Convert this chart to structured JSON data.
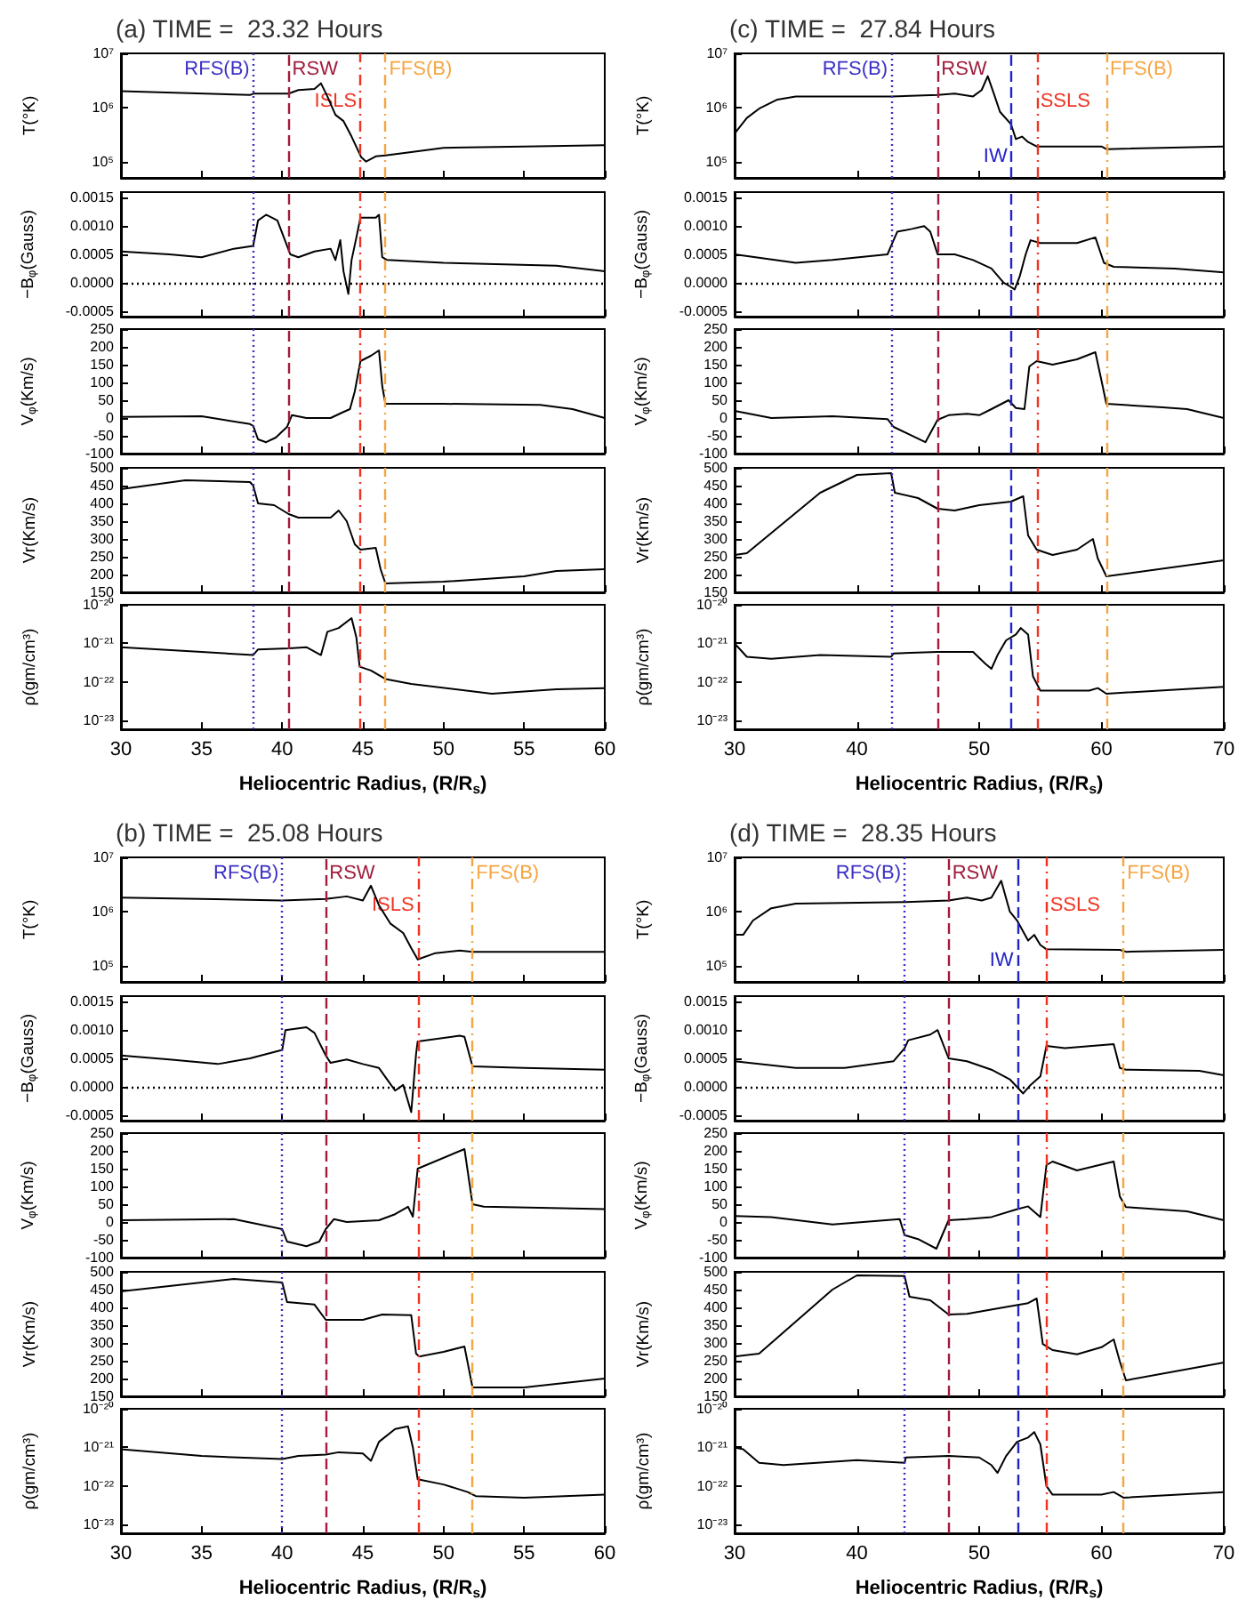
{
  "chart_data": [
    {
      "type": "line",
      "title": "(a) TIME =  23.32 Hours",
      "ylabel": "T(°K)",
      "log": true,
      "color": "#000000",
      "xlim": [
        30,
        60
      ],
      "xticks": [
        30,
        35,
        40,
        45,
        50,
        55,
        60
      ],
      "tick_labels": "y",
      "ylim": [
        50000.0,
        10000000.0
      ],
      "yticks": [
        {
          "value": 100000.0,
          "label": "10⁵"
        },
        {
          "value": 1000000.0,
          "label": "10⁶"
        },
        {
          "value": 10000000.0,
          "label": "10⁷"
        }
      ],
      "ref_lines": [
        {
          "axis": "x",
          "value": 38.2,
          "label": "RFS(B)",
          "color": "#3b2fc4",
          "line_style": "dotted"
        },
        {
          "axis": "x",
          "value": 40.4,
          "label": "RSW",
          "color": "#a01c3c",
          "line_style": "dashed"
        },
        {
          "axis": "x",
          "value": 44.85,
          "label": "ISLS",
          "color": "#ee3322",
          "line_style": "dashdot"
        },
        {
          "axis": "x",
          "value": 46.4,
          "label": "FFS(B)",
          "color": "#f5a542",
          "line_style": "dashdot"
        }
      ],
      "x": [
        30,
        38,
        38.2,
        40.4,
        41,
        42,
        42.4,
        42.8,
        43.3,
        43.8,
        44.3,
        44.9,
        45.2,
        45.8,
        46.4,
        48,
        50,
        55,
        60
      ],
      "values": [
        2000000.0,
        1700000.0,
        1800000.0,
        1800000.0,
        2100000.0,
        2200000.0,
        2800000.0,
        1600000.0,
        730000.0,
        560000.0,
        290000.0,
        120000.0,
        100000.0,
        125000.0,
        130000.0,
        150000.0,
        180000.0,
        190000.0,
        200000.0
      ]
    },
    {
      "type": "line",
      "ylabel": "−B$_{φ}$(Gauss)",
      "color": "#000000",
      "xlim": [
        30,
        60
      ],
      "xticks": [
        30,
        35,
        40,
        45,
        50,
        55,
        60
      ],
      "tick_labels": "y",
      "ylim": [
        -0.0006,
        0.0016
      ],
      "yticks": [
        -0.0005,
        {
          "value": 0,
          "label": "0.0000"
        },
        0.0005,
        {
          "value": 0.001,
          "label": "0.0010"
        },
        0.0015
      ],
      "ref_lines": [
        {
          "axis": "x",
          "value": 38.2,
          "color": "#3b2fc4",
          "line_style": "dotted"
        },
        {
          "axis": "x",
          "value": 40.4,
          "color": "#a01c3c",
          "line_style": "dashed"
        },
        {
          "axis": "x",
          "value": 44.85,
          "color": "#ee3322",
          "line_style": "dashdot"
        },
        {
          "axis": "x",
          "value": 46.4,
          "color": "#f5a542",
          "line_style": "dashdot"
        },
        {
          "axis": "y",
          "value": 0,
          "color": "#000000",
          "line_style": "dotted"
        }
      ],
      "x": [
        30,
        33,
        35,
        37,
        38.2,
        38.5,
        39,
        39.7,
        40.1,
        40.5,
        41,
        42,
        43,
        43.3,
        43.6,
        43.8,
        44.1,
        44.3,
        44.6,
        44.85,
        45.8,
        46,
        46.2,
        46.5,
        50,
        57,
        60
      ],
      "values": [
        0.00055,
        0.0005,
        0.00045,
        0.0006,
        0.00065,
        0.0011,
        0.0012,
        0.0011,
        0.0008,
        0.0005,
        0.00045,
        0.00055,
        0.0006,
        0.0004,
        0.00075,
        0.0002,
        -0.0002,
        0.0004,
        0.0008,
        0.00115,
        0.00115,
        0.0012,
        0.00045,
        0.0004,
        0.00035,
        0.0003,
        0.0002
      ]
    },
    {
      "type": "line",
      "ylabel": "V$_{φ}$(Km/s)",
      "color": "#000000",
      "xlim": [
        30,
        60
      ],
      "xticks": [
        30,
        35,
        40,
        45,
        50,
        55,
        60
      ],
      "tick_labels": "y",
      "ylim": [
        -100,
        250
      ],
      "yticks": [
        -100,
        -50,
        0,
        50,
        100,
        150,
        200,
        250
      ],
      "ref_lines": [
        {
          "axis": "x",
          "value": 38.2,
          "color": "#3b2fc4",
          "line_style": "dotted"
        },
        {
          "axis": "x",
          "value": 40.4,
          "color": "#a01c3c",
          "line_style": "dashed"
        },
        {
          "axis": "x",
          "value": 44.85,
          "color": "#ee3322",
          "line_style": "dashdot"
        },
        {
          "axis": "x",
          "value": 46.4,
          "color": "#f5a542",
          "line_style": "dashdot"
        }
      ],
      "x": [
        30,
        35,
        38,
        38.2,
        38.5,
        39,
        39.6,
        40.3,
        40.6,
        41.5,
        43,
        43.7,
        44.2,
        44.5,
        44.85,
        45.5,
        46,
        46.2,
        46.4,
        50,
        56,
        58,
        60
      ],
      "values": [
        3,
        5,
        -17,
        -22,
        -60,
        -68,
        -55,
        -25,
        8,
        0,
        0,
        15,
        25,
        75,
        160,
        175,
        190,
        90,
        40,
        40,
        37,
        25,
        0
      ]
    },
    {
      "type": "line",
      "ylabel": "Vr(Km/s)",
      "color": "#000000",
      "xlim": [
        30,
        60
      ],
      "xticks": [
        30,
        35,
        40,
        45,
        50,
        55,
        60
      ],
      "tick_labels": "y",
      "ylim": [
        150,
        500
      ],
      "yticks": [
        150,
        200,
        250,
        300,
        350,
        400,
        450,
        500
      ],
      "ref_lines": [
        {
          "axis": "x",
          "value": 38.2,
          "color": "#3b2fc4",
          "line_style": "dotted"
        },
        {
          "axis": "x",
          "value": 40.4,
          "color": "#a01c3c",
          "line_style": "dashed"
        },
        {
          "axis": "x",
          "value": 44.85,
          "color": "#ee3322",
          "line_style": "dashdot"
        },
        {
          "axis": "x",
          "value": 46.4,
          "color": "#f5a542",
          "line_style": "dashdot"
        }
      ],
      "x": [
        30,
        34,
        38,
        38.2,
        38.5,
        39.5,
        40.4,
        41,
        43,
        43.5,
        44,
        44.5,
        44.85,
        45.8,
        46.1,
        46.4,
        50,
        55,
        57,
        60
      ],
      "values": [
        440,
        465,
        460,
        450,
        400,
        395,
        370,
        360,
        360,
        380,
        350,
        285,
        270,
        275,
        215,
        175,
        180,
        195,
        210,
        215
      ]
    },
    {
      "type": "line",
      "ylabel": "ρ(gm/cm³)",
      "xlabel": "Heliocentric Radius, (R/R$_{s}$)",
      "log": true,
      "color": "#000000",
      "xlim": [
        30,
        60
      ],
      "xticks": [
        30,
        35,
        40,
        45,
        50,
        55,
        60
      ],
      "ylim": [
        6e-24,
        1e-20
      ],
      "yticks": [
        {
          "value": 1e-23,
          "label": "10⁻²³"
        },
        {
          "value": 1e-22,
          "label": "10⁻²²"
        },
        {
          "value": 1e-21,
          "label": "10⁻²¹"
        },
        {
          "value": 1e-20,
          "label": "10⁻²⁰"
        }
      ],
      "ref_lines": [
        {
          "axis": "x",
          "value": 38.2,
          "color": "#3b2fc4",
          "line_style": "dotted"
        },
        {
          "axis": "x",
          "value": 40.4,
          "color": "#a01c3c",
          "line_style": "dashed"
        },
        {
          "axis": "x",
          "value": 44.85,
          "color": "#ee3322",
          "line_style": "dashdot"
        },
        {
          "axis": "x",
          "value": 46.4,
          "color": "#f5a542",
          "line_style": "dashdot"
        }
      ],
      "x": [
        30,
        35,
        38.2,
        38.5,
        40.4,
        41.5,
        42.4,
        42.8,
        43.5,
        44.3,
        44.6,
        44.8,
        45.5,
        46.4,
        48,
        53,
        57,
        60
      ],
      "values": [
        8e-22,
        6e-22,
        5e-22,
        7e-22,
        7.5e-22,
        8e-22,
        5e-22,
        2e-21,
        2.5e-21,
        4.5e-21,
        1.4e-21,
        2.5e-22,
        2e-22,
        1.2e-22,
        9e-23,
        5e-23,
        6.5e-23,
        7e-23
      ]
    },
    {
      "type": "line",
      "title": "(c) TIME =  27.84 Hours",
      "ylabel": "T(°K)",
      "log": true,
      "color": "#000000",
      "xlim": [
        30,
        70
      ],
      "xticks": [
        30,
        40,
        50,
        60,
        70
      ],
      "tick_labels": "y",
      "ylim": [
        50000.0,
        10000000.0
      ],
      "yticks": [
        {
          "value": 100000.0,
          "label": "10⁵"
        },
        {
          "value": 1000000.0,
          "label": "10⁶"
        },
        {
          "value": 10000000.0,
          "label": "10⁷"
        }
      ],
      "ref_lines": [
        {
          "axis": "x",
          "value": 42.8,
          "label": "RFS(B)",
          "color": "#3b2fc4",
          "line_style": "dotted"
        },
        {
          "axis": "x",
          "value": 46.6,
          "label": "RSW",
          "color": "#a01c3c",
          "line_style": "dashed"
        },
        {
          "axis": "x",
          "value": 52.6,
          "label": "IW",
          "color": "#2323c8",
          "line_style": "dashed"
        },
        {
          "axis": "x",
          "value": 54.7,
          "label": "SSLS",
          "color": "#ee3322",
          "line_style": "dashdot"
        },
        {
          "axis": "x",
          "value": 60.4,
          "label": "FFS(B)",
          "color": "#f5a542",
          "line_style": "dashdot"
        }
      ],
      "x": [
        30,
        31,
        32,
        33.5,
        35,
        42.8,
        46.6,
        48,
        49.5,
        50.2,
        50.7,
        51.2,
        51.7,
        52.6,
        53,
        53.5,
        54,
        54.7,
        60,
        60.4,
        70
      ],
      "values": [
        330000.0,
        640000.0,
        950000.0,
        1400000.0,
        1600000.0,
        1600000.0,
        1700000.0,
        1800000.0,
        1600000.0,
        2100000.0,
        3800000.0,
        1800000.0,
        830000.0,
        490000.0,
        260000.0,
        290000.0,
        230000.0,
        190000.0,
        190000.0,
        170000.0,
        190000.0
      ]
    },
    {
      "type": "line",
      "ylabel": "−B$_{φ}$(Gauss)",
      "color": "#000000",
      "xlim": [
        30,
        70
      ],
      "xticks": [
        30,
        40,
        50,
        60,
        70
      ],
      "tick_labels": "y",
      "ylim": [
        -0.0006,
        0.0016
      ],
      "yticks": [
        -0.0005,
        {
          "value": 0,
          "label": "0.0000"
        },
        0.0005,
        {
          "value": 0.001,
          "label": "0.0010"
        },
        0.0015
      ],
      "ref_lines": [
        {
          "axis": "x",
          "value": 42.8,
          "color": "#3b2fc4",
          "line_style": "dotted"
        },
        {
          "axis": "x",
          "value": 46.6,
          "color": "#a01c3c",
          "line_style": "dashed"
        },
        {
          "axis": "x",
          "value": 52.6,
          "color": "#2323c8",
          "line_style": "dashed"
        },
        {
          "axis": "x",
          "value": 54.7,
          "color": "#ee3322",
          "line_style": "dashdot"
        },
        {
          "axis": "x",
          "value": 60.4,
          "color": "#f5a542",
          "line_style": "dashdot"
        },
        {
          "axis": "y",
          "value": 0,
          "color": "#000000",
          "line_style": "dotted"
        }
      ],
      "x": [
        30,
        35,
        38,
        42.5,
        42.8,
        43.3,
        44.5,
        45.5,
        46,
        46.6,
        48,
        49.5,
        51,
        52,
        52.4,
        52.9,
        53.3,
        53.8,
        54.2,
        55,
        58,
        59.5,
        60.2,
        61,
        66,
        70
      ],
      "values": [
        0.0005,
        0.00035,
        0.0004,
        0.0005,
        0.00065,
        0.0009,
        0.00095,
        0.001,
        0.0009,
        0.0005,
        0.0005,
        0.0004,
        0.00025,
        0,
        -5e-05,
        -0.00012,
        0.0001,
        0.0005,
        0.00075,
        0.0007,
        0.0007,
        0.0008,
        0.00035,
        0.00028,
        0.00025,
        0.00018
      ]
    },
    {
      "type": "line",
      "ylabel": "V$_{φ}$(Km/s)",
      "color": "#000000",
      "xlim": [
        30,
        70
      ],
      "xticks": [
        30,
        40,
        50,
        60,
        70
      ],
      "tick_labels": "y",
      "ylim": [
        -100,
        250
      ],
      "yticks": [
        -100,
        -50,
        0,
        50,
        100,
        150,
        200,
        250
      ],
      "ref_lines": [
        {
          "axis": "x",
          "value": 42.8,
          "color": "#3b2fc4",
          "line_style": "dotted"
        },
        {
          "axis": "x",
          "value": 46.6,
          "color": "#a01c3c",
          "line_style": "dashed"
        },
        {
          "axis": "x",
          "value": 52.6,
          "color": "#2323c8",
          "line_style": "dashed"
        },
        {
          "axis": "x",
          "value": 54.7,
          "color": "#ee3322",
          "line_style": "dashdot"
        },
        {
          "axis": "x",
          "value": 60.4,
          "color": "#f5a542",
          "line_style": "dashdot"
        }
      ],
      "x": [
        30,
        33,
        38,
        42.5,
        43,
        45.6,
        46.6,
        47.5,
        49,
        50,
        51,
        52.4,
        53,
        53.7,
        54.1,
        54.7,
        56,
        58,
        59.5,
        60,
        60.4,
        65,
        67,
        70
      ],
      "values": [
        20,
        0,
        5,
        -3,
        -25,
        -68,
        -5,
        8,
        12,
        8,
        25,
        50,
        28,
        25,
        145,
        160,
        150,
        165,
        185,
        105,
        40,
        30,
        25,
        0
      ]
    },
    {
      "type": "line",
      "ylabel": "Vr(Km/s)",
      "color": "#000000",
      "xlim": [
        30,
        70
      ],
      "xticks": [
        30,
        40,
        50,
        60,
        70
      ],
      "tick_labels": "y",
      "ylim": [
        150,
        500
      ],
      "yticks": [
        150,
        200,
        250,
        300,
        350,
        400,
        450,
        500
      ],
      "ref_lines": [
        {
          "axis": "x",
          "value": 42.8,
          "color": "#3b2fc4",
          "line_style": "dotted"
        },
        {
          "axis": "x",
          "value": 46.6,
          "color": "#a01c3c",
          "line_style": "dashed"
        },
        {
          "axis": "x",
          "value": 52.6,
          "color": "#2323c8",
          "line_style": "dashed"
        },
        {
          "axis": "x",
          "value": 54.7,
          "color": "#ee3322",
          "line_style": "dashdot"
        },
        {
          "axis": "x",
          "value": 60.4,
          "color": "#f5a542",
          "line_style": "dashdot"
        }
      ],
      "x": [
        30,
        31,
        34,
        37,
        40,
        42.8,
        43.1,
        45,
        46.6,
        48,
        50,
        52.6,
        53.6,
        54,
        54.7,
        56,
        58,
        59.3,
        59.7,
        60.4,
        70
      ],
      "values": [
        255,
        260,
        345,
        430,
        480,
        485,
        430,
        415,
        385,
        380,
        395,
        405,
        420,
        310,
        270,
        255,
        270,
        300,
        245,
        195,
        240
      ]
    },
    {
      "type": "line",
      "ylabel": "ρ(gm/cm³)",
      "xlabel": "Heliocentric Radius, (R/R$_{s}$)",
      "log": true,
      "color": "#000000",
      "xlim": [
        30,
        70
      ],
      "xticks": [
        30,
        40,
        50,
        60,
        70
      ],
      "ylim": [
        6e-24,
        1e-20
      ],
      "yticks": [
        {
          "value": 1e-23,
          "label": "10⁻²³"
        },
        {
          "value": 1e-22,
          "label": "10⁻²²"
        },
        {
          "value": 1e-21,
          "label": "10⁻²¹"
        },
        {
          "value": 1e-20,
          "label": "10⁻²⁰"
        }
      ],
      "ref_lines": [
        {
          "axis": "x",
          "value": 42.8,
          "color": "#3b2fc4",
          "line_style": "dotted"
        },
        {
          "axis": "x",
          "value": 46.6,
          "color": "#a01c3c",
          "line_style": "dashed"
        },
        {
          "axis": "x",
          "value": 52.6,
          "color": "#2323c8",
          "line_style": "dashed"
        },
        {
          "axis": "x",
          "value": 54.7,
          "color": "#ee3322",
          "line_style": "dashdot"
        },
        {
          "axis": "x",
          "value": 60.4,
          "color": "#f5a542",
          "line_style": "dashdot"
        }
      ],
      "x": [
        30,
        31,
        33,
        37,
        42.8,
        43,
        46.6,
        49.5,
        50.5,
        51,
        51.5,
        52.2,
        53,
        53.4,
        54,
        54.4,
        55,
        59,
        59.7,
        60.4,
        70
      ],
      "values": [
        1e-21,
        4.5e-22,
        4e-22,
        5e-22,
        4.5e-22,
        5.5e-22,
        6e-22,
        6e-22,
        3e-22,
        2.2e-22,
        5e-22,
        1.2e-21,
        1.7e-21,
        2.5e-21,
        1.7e-21,
        1.4e-22,
        6e-23,
        6e-23,
        7e-23,
        5e-23,
        7.5e-23
      ]
    },
    {
      "type": "line",
      "title": "(b) TIME =  25.08 Hours",
      "ylabel": "T(°K)",
      "log": true,
      "color": "#000000",
      "xlim": [
        30,
        60
      ],
      "xticks": [
        30,
        35,
        40,
        45,
        50,
        55,
        60
      ],
      "tick_labels": "y",
      "ylim": [
        50000.0,
        10000000.0
      ],
      "yticks": [
        {
          "value": 100000.0,
          "label": "10⁵"
        },
        {
          "value": 1000000.0,
          "label": "10⁶"
        },
        {
          "value": 10000000.0,
          "label": "10⁷"
        }
      ],
      "ref_lines": [
        {
          "axis": "x",
          "value": 40,
          "label": "RFS(B)",
          "color": "#3b2fc4",
          "line_style": "dotted"
        },
        {
          "axis": "x",
          "value": 42.7,
          "label": "RSW",
          "color": "#a01c3c",
          "line_style": "dashed"
        },
        {
          "axis": "x",
          "value": 48.4,
          "label": "ISLS",
          "color": "#ee3322",
          "line_style": "dashdot"
        },
        {
          "axis": "x",
          "value": 51.8,
          "label": "FFS(B)",
          "color": "#f5a542",
          "line_style": "dashdot"
        }
      ],
      "x": [
        30,
        35,
        40,
        42.7,
        44,
        45,
        45.5,
        46,
        46.7,
        47.5,
        48,
        48.4,
        49.5,
        51,
        51.8,
        60
      ],
      "values": [
        1800000.0,
        1700000.0,
        1600000.0,
        1700000.0,
        1900000.0,
        1600000.0,
        3000000.0,
        1300000.0,
        600000.0,
        400000.0,
        210000.0,
        130000.0,
        170000.0,
        190000.0,
        180000.0,
        180000.0
      ]
    },
    {
      "type": "line",
      "ylabel": "−B$_{φ}$(Gauss)",
      "color": "#000000",
      "xlim": [
        30,
        60
      ],
      "xticks": [
        30,
        35,
        40,
        45,
        50,
        55,
        60
      ],
      "tick_labels": "y",
      "ylim": [
        -0.0006,
        0.0016
      ],
      "yticks": [
        -0.0005,
        {
          "value": 0,
          "label": "0.0000"
        },
        0.0005,
        {
          "value": 0.001,
          "label": "0.0010"
        },
        0.0015
      ],
      "ref_lines": [
        {
          "axis": "x",
          "value": 40,
          "color": "#3b2fc4",
          "line_style": "dotted"
        },
        {
          "axis": "x",
          "value": 42.7,
          "color": "#a01c3c",
          "line_style": "dashed"
        },
        {
          "axis": "x",
          "value": 48.4,
          "color": "#ee3322",
          "line_style": "dashdot"
        },
        {
          "axis": "x",
          "value": 51.8,
          "color": "#f5a542",
          "line_style": "dashdot"
        },
        {
          "axis": "y",
          "value": 0,
          "color": "#000000",
          "line_style": "dotted"
        }
      ],
      "x": [
        30,
        33,
        36,
        38,
        40,
        40.2,
        41.5,
        42,
        42.7,
        43,
        44,
        45,
        46,
        46.5,
        47,
        47.5,
        48,
        48.3,
        48.4,
        51,
        51.3,
        51.8,
        55,
        60
      ],
      "values": [
        0.00055,
        0.00048,
        0.0004,
        0.0005,
        0.00065,
        0.001,
        0.00105,
        0.00095,
        0.00055,
        0.00042,
        0.00048,
        0.0004,
        0.00033,
        0.00013,
        -7e-05,
        3e-05,
        -0.00045,
        0.00058,
        0.0008,
        0.0009,
        0.00088,
        0.00036,
        0.00033,
        0.0003
      ]
    },
    {
      "type": "line",
      "ylabel": "V$_{φ}$(Km/s)",
      "color": "#000000",
      "xlim": [
        30,
        60
      ],
      "xticks": [
        30,
        35,
        40,
        45,
        50,
        55,
        60
      ],
      "tick_labels": "y",
      "ylim": [
        -100,
        250
      ],
      "yticks": [
        -100,
        -50,
        0,
        50,
        100,
        150,
        200,
        250
      ],
      "ref_lines": [
        {
          "axis": "x",
          "value": 40,
          "color": "#3b2fc4",
          "line_style": "dotted"
        },
        {
          "axis": "x",
          "value": 42.7,
          "color": "#a01c3c",
          "line_style": "dashed"
        },
        {
          "axis": "x",
          "value": 48.4,
          "color": "#ee3322",
          "line_style": "dashdot"
        },
        {
          "axis": "x",
          "value": 51.8,
          "color": "#f5a542",
          "line_style": "dashdot"
        }
      ],
      "x": [
        30,
        37,
        40,
        40.3,
        41.5,
        42.3,
        42.7,
        43.2,
        44,
        46,
        47,
        47.8,
        48.1,
        48.4,
        51.3,
        51.8,
        52.5,
        56,
        60
      ],
      "values": [
        5,
        8,
        -20,
        -55,
        -68,
        -55,
        -20,
        8,
        0,
        5,
        22,
        43,
        15,
        150,
        205,
        50,
        43,
        40,
        36
      ]
    },
    {
      "type": "line",
      "ylabel": "Vr(Km/s)",
      "color": "#000000",
      "xlim": [
        30,
        60
      ],
      "xticks": [
        30,
        35,
        40,
        45,
        50,
        55,
        60
      ],
      "tick_labels": "y",
      "ylim": [
        150,
        500
      ],
      "yticks": [
        150,
        200,
        250,
        300,
        350,
        400,
        450,
        500
      ],
      "ref_lines": [
        {
          "axis": "x",
          "value": 40,
          "color": "#3b2fc4",
          "line_style": "dotted"
        },
        {
          "axis": "x",
          "value": 42.7,
          "color": "#a01c3c",
          "line_style": "dashed"
        },
        {
          "axis": "x",
          "value": 48.4,
          "color": "#ee3322",
          "line_style": "dashdot"
        },
        {
          "axis": "x",
          "value": 51.8,
          "color": "#f5a542",
          "line_style": "dashdot"
        }
      ],
      "x": [
        30,
        37,
        40,
        40.3,
        42,
        42.7,
        45,
        46.2,
        48,
        48.3,
        48.5,
        50,
        51.3,
        51.8,
        55,
        60
      ],
      "values": [
        445,
        480,
        470,
        415,
        408,
        365,
        365,
        380,
        378,
        270,
        262,
        275,
        290,
        175,
        175,
        200
      ]
    },
    {
      "type": "line",
      "ylabel": "ρ(gm/cm³)",
      "xlabel": "Heliocentric Radius, (R/R$_{s}$)",
      "log": true,
      "color": "#000000",
      "xlim": [
        30,
        60
      ],
      "xticks": [
        30,
        35,
        40,
        45,
        50,
        55,
        60
      ],
      "ylim": [
        6e-24,
        1e-20
      ],
      "yticks": [
        {
          "value": 1e-23,
          "label": "10⁻²³"
        },
        {
          "value": 1e-22,
          "label": "10⁻²²"
        },
        {
          "value": 1e-21,
          "label": "10⁻²¹"
        },
        {
          "value": 1e-20,
          "label": "10⁻²⁰"
        }
      ],
      "ref_lines": [
        {
          "axis": "x",
          "value": 40,
          "color": "#3b2fc4",
          "line_style": "dotted"
        },
        {
          "axis": "x",
          "value": 42.7,
          "color": "#a01c3c",
          "line_style": "dashed"
        },
        {
          "axis": "x",
          "value": 48.4,
          "color": "#ee3322",
          "line_style": "dashdot"
        },
        {
          "axis": "x",
          "value": 51.8,
          "color": "#f5a542",
          "line_style": "dashdot"
        }
      ],
      "x": [
        30,
        35,
        40,
        41,
        42.7,
        43.5,
        45,
        45.5,
        46,
        47,
        47.8,
        48.1,
        48.4,
        50,
        51.5,
        52,
        55,
        60
      ],
      "values": [
        9e-22,
        6e-22,
        5e-22,
        6e-22,
        6.5e-22,
        7.5e-22,
        7e-22,
        4.5e-22,
        1.4e-21,
        3e-21,
        3.5e-21,
        1e-21,
        1.5e-22,
        1.1e-22,
        7e-23,
        5.5e-23,
        5e-23,
        6e-23
      ]
    },
    {
      "type": "line",
      "title": "(d) TIME =  28.35 Hours",
      "ylabel": "T(°K)",
      "log": true,
      "color": "#000000",
      "xlim": [
        30,
        70
      ],
      "xticks": [
        30,
        40,
        50,
        60,
        70
      ],
      "tick_labels": "y",
      "ylim": [
        50000.0,
        10000000.0
      ],
      "yticks": [
        {
          "value": 100000.0,
          "label": "10⁵"
        },
        {
          "value": 1000000.0,
          "label": "10⁶"
        },
        {
          "value": 10000000.0,
          "label": "10⁷"
        }
      ],
      "ref_lines": [
        {
          "axis": "x",
          "value": 43.9,
          "label": "RFS(B)",
          "color": "#3b2fc4",
          "line_style": "dotted"
        },
        {
          "axis": "x",
          "value": 47.5,
          "label": "RSW",
          "color": "#a01c3c",
          "line_style": "dashed"
        },
        {
          "axis": "x",
          "value": 53.1,
          "label": "IW",
          "color": "#2323c8",
          "line_style": "dashed"
        },
        {
          "axis": "x",
          "value": 55.5,
          "label": "SSLS",
          "color": "#ee3322",
          "line_style": "dashdot"
        },
        {
          "axis": "x",
          "value": 61.8,
          "label": "FFS(B)",
          "color": "#f5a542",
          "line_style": "dashdot"
        }
      ],
      "x": [
        30,
        30.7,
        31.5,
        33,
        35,
        44,
        47.5,
        49,
        50.2,
        51,
        51.8,
        52.5,
        53.1,
        54,
        54.5,
        55,
        55.5,
        61.5,
        62,
        70
      ],
      "values": [
        370000.0,
        370000.0,
        680000.0,
        1150000.0,
        1400000.0,
        1500000.0,
        1600000.0,
        1800000.0,
        1600000.0,
        1800000.0,
        3700000.0,
        1000000.0,
        680000.0,
        290000.0,
        370000.0,
        240000.0,
        200000.0,
        195000.0,
        180000.0,
        195000.0
      ]
    },
    {
      "type": "line",
      "ylabel": "−B$_{φ}$(Gauss)",
      "color": "#000000",
      "xlim": [
        30,
        70
      ],
      "xticks": [
        30,
        40,
        50,
        60,
        70
      ],
      "tick_labels": "y",
      "ylim": [
        -0.0006,
        0.0016
      ],
      "yticks": [
        -0.0005,
        {
          "value": 0,
          "label": "0.0000"
        },
        0.0005,
        {
          "value": 0.001,
          "label": "0.0010"
        },
        0.0015
      ],
      "ref_lines": [
        {
          "axis": "x",
          "value": 43.9,
          "color": "#3b2fc4",
          "line_style": "dotted"
        },
        {
          "axis": "x",
          "value": 47.5,
          "color": "#a01c3c",
          "line_style": "dashed"
        },
        {
          "axis": "x",
          "value": 53.1,
          "color": "#2323c8",
          "line_style": "dashed"
        },
        {
          "axis": "x",
          "value": 55.5,
          "color": "#ee3322",
          "line_style": "dashdot"
        },
        {
          "axis": "x",
          "value": 61.8,
          "color": "#f5a542",
          "line_style": "dashdot"
        },
        {
          "axis": "y",
          "value": 0,
          "color": "#000000",
          "line_style": "dotted"
        }
      ],
      "x": [
        30,
        35,
        39,
        43,
        43.9,
        44.2,
        46,
        46.6,
        47.5,
        49,
        51,
        52.5,
        53.6,
        54.2,
        55,
        55.5,
        57,
        61,
        61.5,
        62,
        68,
        70
      ],
      "values": [
        0.00045,
        0.00033,
        0.00033,
        0.00045,
        0.00068,
        0.00082,
        0.00092,
        0.001,
        0.0005,
        0.00045,
        0.0003,
        0.00013,
        -0.00012,
        3e-05,
        0.00018,
        0.00072,
        0.00068,
        0.00075,
        0.00033,
        0.0003,
        0.00028,
        0.0002
      ]
    },
    {
      "type": "line",
      "ylabel": "V$_{φ}$(Km/s)",
      "color": "#000000",
      "xlim": [
        30,
        70
      ],
      "xticks": [
        30,
        40,
        50,
        60,
        70
      ],
      "tick_labels": "y",
      "ylim": [
        -100,
        250
      ],
      "yticks": [
        -100,
        -50,
        0,
        50,
        100,
        150,
        200,
        250
      ],
      "ref_lines": [
        {
          "axis": "x",
          "value": 43.9,
          "color": "#3b2fc4",
          "line_style": "dotted"
        },
        {
          "axis": "x",
          "value": 47.5,
          "color": "#a01c3c",
          "line_style": "dashed"
        },
        {
          "axis": "x",
          "value": 53.1,
          "color": "#2323c8",
          "line_style": "dashed"
        },
        {
          "axis": "x",
          "value": 55.5,
          "color": "#ee3322",
          "line_style": "dashdot"
        },
        {
          "axis": "x",
          "value": 61.8,
          "color": "#f5a542",
          "line_style": "dashdot"
        }
      ],
      "x": [
        30,
        33,
        38,
        43.5,
        43.9,
        45,
        46.5,
        47.5,
        49,
        51,
        53,
        54,
        55,
        55.5,
        56,
        58,
        61,
        61.5,
        62,
        67,
        70
      ],
      "values": [
        17,
        14,
        -7,
        8,
        -37,
        -48,
        -75,
        5,
        8,
        14,
        35,
        44,
        14,
        160,
        170,
        145,
        170,
        72,
        42,
        30,
        5
      ]
    },
    {
      "type": "line",
      "ylabel": "Vr(Km/s)",
      "color": "#000000",
      "xlim": [
        30,
        70
      ],
      "xticks": [
        30,
        40,
        50,
        60,
        70
      ],
      "tick_labels": "y",
      "ylim": [
        150,
        500
      ],
      "yticks": [
        150,
        200,
        250,
        300,
        350,
        400,
        450,
        500
      ],
      "ref_lines": [
        {
          "axis": "x",
          "value": 43.9,
          "color": "#3b2fc4",
          "line_style": "dotted"
        },
        {
          "axis": "x",
          "value": 47.5,
          "color": "#a01c3c",
          "line_style": "dashed"
        },
        {
          "axis": "x",
          "value": 53.1,
          "color": "#2323c8",
          "line_style": "dashed"
        },
        {
          "axis": "x",
          "value": 55.5,
          "color": "#ee3322",
          "line_style": "dashdot"
        },
        {
          "axis": "x",
          "value": 61.8,
          "color": "#f5a542",
          "line_style": "dashdot"
        }
      ],
      "x": [
        30,
        32,
        35,
        38,
        40,
        43.9,
        44.3,
        46,
        47.5,
        49,
        52,
        54,
        54.7,
        55.2,
        56,
        58,
        60,
        61,
        61.5,
        62,
        70
      ],
      "values": [
        262,
        270,
        360,
        450,
        490,
        488,
        430,
        420,
        380,
        382,
        400,
        412,
        425,
        297,
        280,
        268,
        288,
        310,
        248,
        195,
        245
      ]
    },
    {
      "type": "line",
      "ylabel": "ρ(gm/cm³)",
      "xlabel": "Heliocentric Radius, (R/R$_{s}$)",
      "log": true,
      "color": "#000000",
      "xlim": [
        30,
        70
      ],
      "xticks": [
        30,
        40,
        50,
        60,
        70
      ],
      "ylim": [
        6e-24,
        1e-20
      ],
      "yticks": [
        {
          "value": 1e-23,
          "label": "10⁻²³"
        },
        {
          "value": 1e-22,
          "label": "10⁻²²"
        },
        {
          "value": 1e-21,
          "label": "10⁻²¹"
        },
        {
          "value": 1e-20,
          "label": "10⁻²⁰"
        }
      ],
      "ref_lines": [
        {
          "axis": "x",
          "value": 43.9,
          "color": "#3b2fc4",
          "line_style": "dotted"
        },
        {
          "axis": "x",
          "value": 47.5,
          "color": "#a01c3c",
          "line_style": "dashed"
        },
        {
          "axis": "x",
          "value": 53.1,
          "color": "#2323c8",
          "line_style": "dashed"
        },
        {
          "axis": "x",
          "value": 55.5,
          "color": "#ee3322",
          "line_style": "dashdot"
        },
        {
          "axis": "x",
          "value": 61.8,
          "color": "#f5a542",
          "line_style": "dashdot"
        }
      ],
      "x": [
        30,
        30.7,
        32,
        34,
        40,
        43.9,
        44,
        47.5,
        50,
        51,
        51.5,
        52.2,
        53.1,
        54,
        54.5,
        55,
        55.5,
        56,
        60,
        61,
        61.8,
        70
      ],
      "values": [
        1e-21,
        9e-22,
        4e-22,
        3.5e-22,
        4.7e-22,
        4e-22,
        5.5e-22,
        6e-22,
        5.5e-22,
        3.5e-22,
        2.2e-22,
        6e-22,
        1.4e-21,
        1.8e-21,
        2.5e-21,
        1.2e-21,
        1e-22,
        6e-23,
        6e-23,
        7e-23,
        5e-23,
        7e-23
      ]
    }
  ]
}
